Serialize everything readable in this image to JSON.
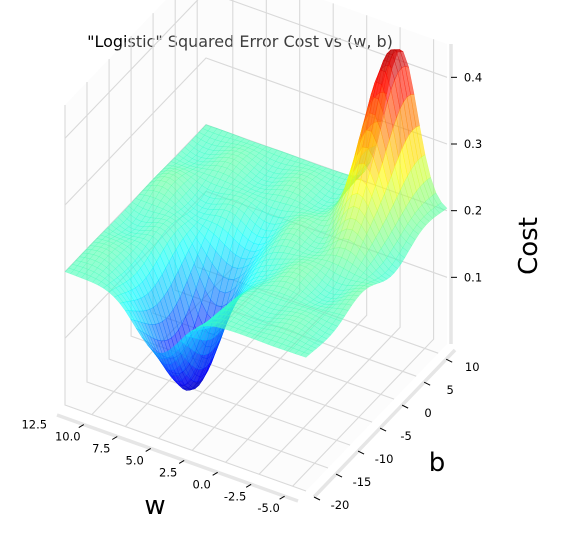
{
  "chart_data": {
    "type": "surface3d",
    "title": "\"Logistic\" Squared Error Cost vs (w, b)",
    "xlabel": "w",
    "ylabel": "b",
    "zlabel": "Cost",
    "xlim": [
      -6,
      12
    ],
    "ylim": [
      -20,
      12
    ],
    "zlim": [
      0.0,
      0.45
    ],
    "x_ticks": [
      "-5.0",
      "-2.5",
      "0.0",
      "2.5",
      "5.0",
      "7.5",
      "10.0",
      "12.5"
    ],
    "y_ticks": [
      "-20",
      "-15",
      "-10",
      "-5",
      "0",
      "5",
      "10"
    ],
    "z_ticks": [
      "0.1",
      "0.2",
      "0.3",
      "0.4"
    ],
    "grid": true,
    "colormap": "jet",
    "surface_alpha": 0.6,
    "plateau_cost": 0.2,
    "peak": {
      "w": -2.5,
      "b": 10,
      "cost": 0.45
    },
    "trough": {
      "w": 5.0,
      "b": -12,
      "cost": 0.02
    }
  }
}
